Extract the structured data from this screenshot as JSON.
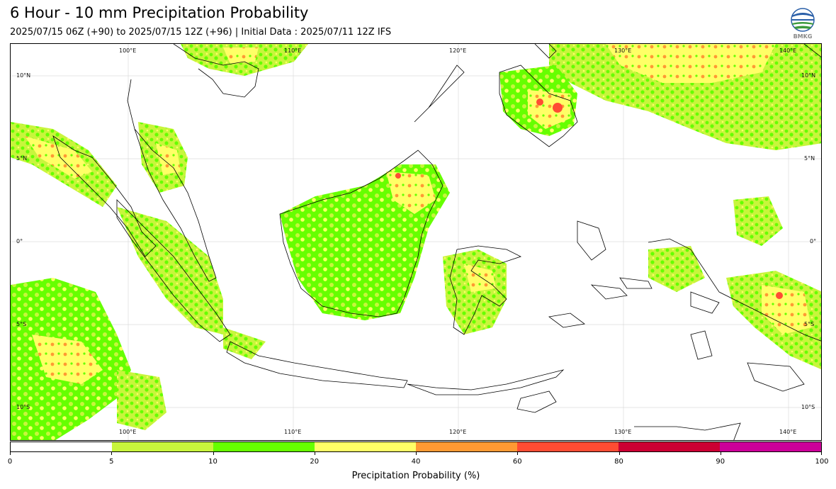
{
  "header": {
    "title": "6 Hour - 10 mm Precipitation Probability",
    "subtitle": "2025/07/15 06Z (+90) to 2025/07/15 12Z (+96) | Initial Data : 2025/07/11 12Z IFS"
  },
  "logo": {
    "text": "BMKG",
    "icon": "bmkg-logo-icon"
  },
  "map": {
    "lon_labels_top": [
      "100°E",
      "110°E",
      "120°E",
      "130°E",
      "140°E"
    ],
    "lon_labels_bottom": [
      "100°E",
      "110°E",
      "120°E",
      "130°E",
      "140°E"
    ],
    "lat_labels_left": [
      "10°N",
      "5°N",
      "0°",
      "5°S",
      "10°S"
    ],
    "lat_labels_right": [
      "10°N",
      "5°N",
      "0°",
      "5°S",
      "10°S"
    ],
    "grid": true
  },
  "colorbar": {
    "label": "Precipitation Probability (%)",
    "ticks": [
      "0",
      "5",
      "10",
      "20",
      "40",
      "60",
      "80",
      "90",
      "100"
    ],
    "colors": [
      "#ffffff",
      "#c8f53c",
      "#66ff00",
      "#ffff66",
      "#ff9933",
      "#ff4c33",
      "#cc0033",
      "#cc0099"
    ]
  }
}
